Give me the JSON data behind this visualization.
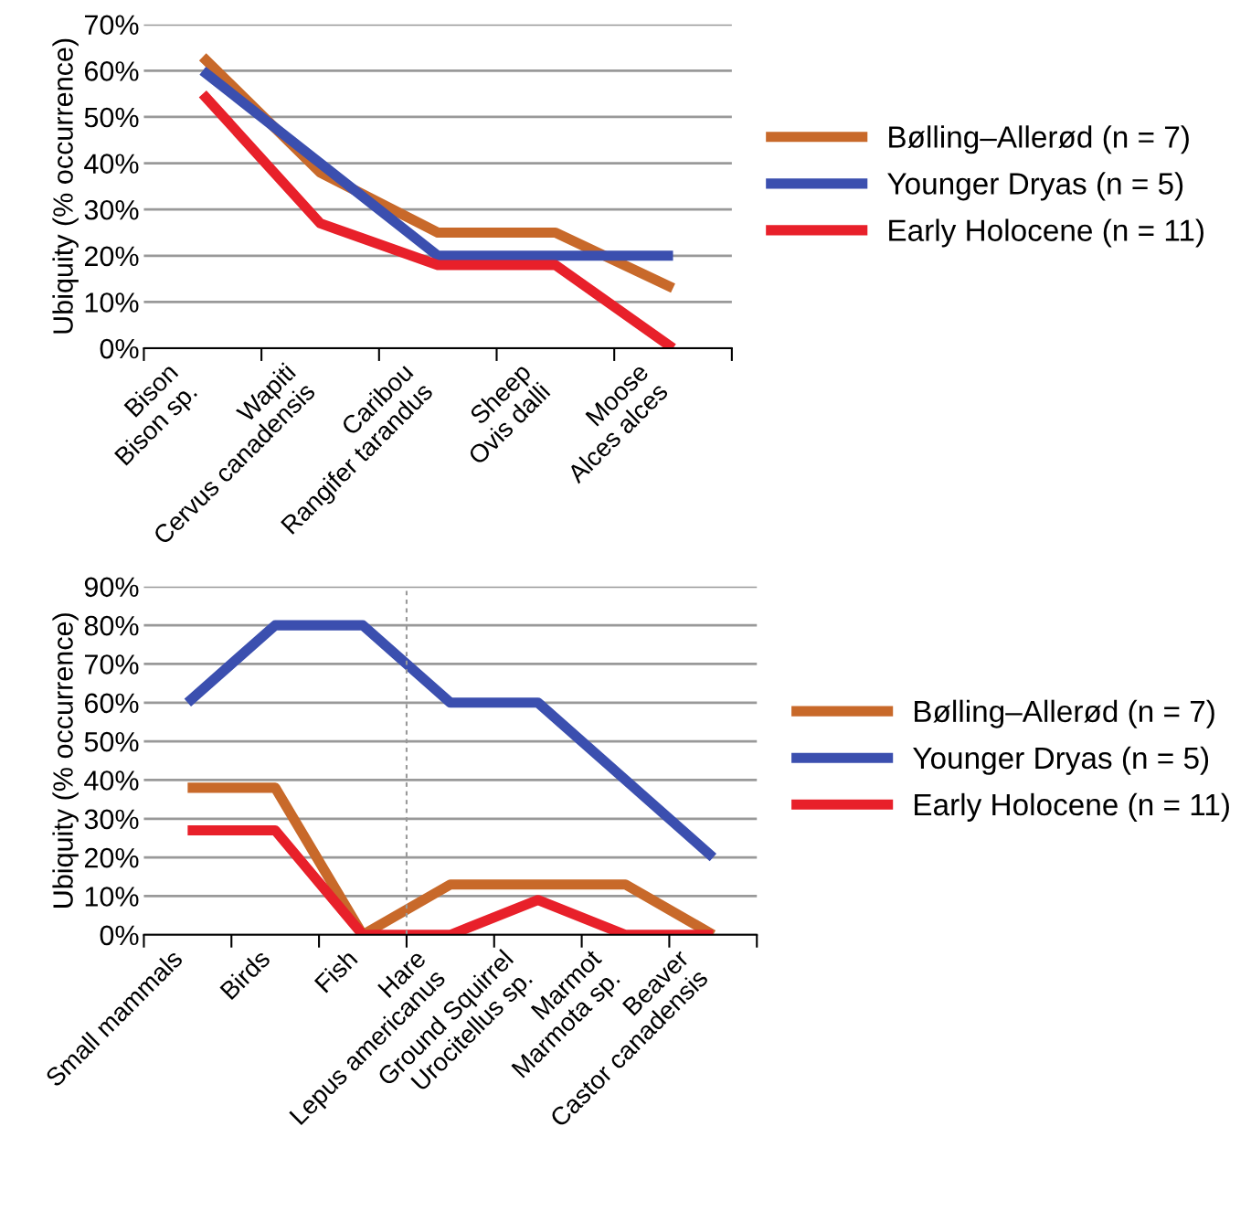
{
  "chart_data": [
    {
      "type": "line",
      "ylabel": "Ubiquity (% occurrence)",
      "categories": [
        "Bison\nBison sp.",
        "Wapiti\nCervus canadensis",
        "Caribou\nRangifer tarandus",
        "Sheep\nOvis dalli",
        "Moose\nAlces alces"
      ],
      "series": [
        {
          "name": "Bølling–Allerød (n = 7)",
          "color": "#c8692a",
          "values": [
            63,
            38,
            25,
            25,
            13
          ]
        },
        {
          "name": "Younger Dryas (n = 5)",
          "color": "#3b4faf",
          "values": [
            60,
            40,
            20,
            20,
            20
          ]
        },
        {
          "name": "Early Holocene (n = 11)",
          "color": "#e8202a",
          "values": [
            55,
            27,
            18,
            18,
            0
          ]
        }
      ],
      "ylim": [
        0,
        70
      ],
      "yticks": [
        {
          "value": 0,
          "label": "0%"
        },
        {
          "value": 10,
          "label": "10%"
        },
        {
          "value": 20,
          "label": "20%"
        },
        {
          "value": 30,
          "label": "30%"
        },
        {
          "value": 40,
          "label": "40%"
        },
        {
          "value": 50,
          "label": "50%"
        },
        {
          "value": 60,
          "label": "60%"
        },
        {
          "value": 70,
          "label": "70%"
        }
      ],
      "grid": "y",
      "legend": "right",
      "marker": "none",
      "line_style": "solid"
    },
    {
      "type": "line",
      "ylabel": "Ubiquity (% occurrence)",
      "categories": [
        "Small mammals",
        "Birds",
        "Fish",
        "Hare\nLepus americanus",
        "Ground Squirrel\nUrocitellus sp.",
        "Marmot\nMarmota sp.",
        "Beaver\nCastor canadensis"
      ],
      "series": [
        {
          "name": "Bølling–Allerød (n = 7)",
          "color": "#c8692a",
          "values": [
            38,
            38,
            0,
            13,
            13,
            13,
            0
          ]
        },
        {
          "name": "Younger Dryas (n = 5)",
          "color": "#3b4faf",
          "values": [
            60,
            80,
            80,
            60,
            60,
            40,
            20
          ]
        },
        {
          "name": "Early Holocene (n = 11)",
          "color": "#e8202a",
          "values": [
            27,
            27,
            0,
            0,
            9,
            0,
            0
          ]
        }
      ],
      "ylim": [
        0,
        90
      ],
      "yticks": [
        {
          "value": 0,
          "label": "0%"
        },
        {
          "value": 10,
          "label": "10%"
        },
        {
          "value": 20,
          "label": "20%"
        },
        {
          "value": 30,
          "label": "30%"
        },
        {
          "value": 40,
          "label": "40%"
        },
        {
          "value": 50,
          "label": "50%"
        },
        {
          "value": 60,
          "label": "60%"
        },
        {
          "value": 70,
          "label": "70%"
        },
        {
          "value": 80,
          "label": "80%"
        },
        {
          "value": 90,
          "label": "90%"
        }
      ],
      "grid": "y",
      "legend": "right",
      "marker": "none",
      "line_style": "solid"
    }
  ]
}
